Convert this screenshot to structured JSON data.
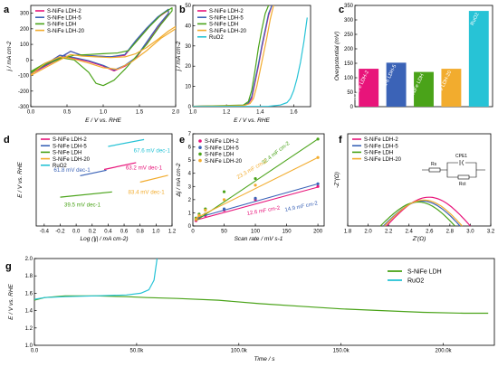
{
  "colors": {
    "nife2": "#e8147a",
    "nife5": "#3b63b7",
    "nife": "#4aa319",
    "nife20": "#f2ac2e",
    "ruo2": "#27c3d6",
    "g_nife": "#4aa319",
    "g_ruo2": "#27c3d6"
  },
  "chart_data": [
    {
      "panel": "a",
      "type": "line",
      "xlabel": "E / V vs. RHE",
      "ylabel": "j / mA cm-2",
      "xlim": [
        0.0,
        2.0
      ],
      "ylim": [
        -300,
        350
      ],
      "xticks": [
        "0.0",
        "0.5",
        "1.0",
        "1.5",
        "2.0"
      ],
      "yticks": [
        "-300",
        "-200",
        "-100",
        "0",
        "100",
        "200",
        "300"
      ],
      "legend": "top-left",
      "series": [
        {
          "name": "S-NiFe LDH-2",
          "color_key": "nife2",
          "x": [
            0.0,
            0.2,
            0.4,
            0.55,
            0.7,
            0.9,
            1.1,
            1.3,
            1.45,
            1.6,
            1.75,
            1.9,
            1.9,
            1.75,
            1.6,
            1.45,
            1.3,
            1.15,
            1.0,
            0.8,
            0.6,
            0.4,
            0.3,
            0.2,
            0.1,
            0.0
          ],
          "y": [
            -90,
            -40,
            10,
            55,
            30,
            25,
            20,
            30,
            120,
            200,
            270,
            320,
            295,
            210,
            110,
            10,
            -40,
            -70,
            -40,
            -10,
            10,
            30,
            0,
            -30,
            -60,
            -85
          ]
        },
        {
          "name": "S-NiFe LDH-5",
          "color_key": "nife5",
          "x": [
            0.0,
            0.2,
            0.4,
            0.55,
            0.7,
            0.9,
            1.1,
            1.3,
            1.45,
            1.6,
            1.75,
            1.9,
            1.9,
            1.75,
            1.6,
            1.45,
            1.3,
            1.15,
            1.0,
            0.8,
            0.6,
            0.4,
            0.3,
            0.2,
            0.1,
            0.0
          ],
          "y": [
            -85,
            -35,
            15,
            55,
            30,
            25,
            20,
            35,
            125,
            205,
            275,
            325,
            300,
            215,
            115,
            15,
            -35,
            -65,
            -35,
            -5,
            15,
            30,
            0,
            -30,
            -55,
            -80
          ]
        },
        {
          "name": "S-NiFe LDH",
          "color_key": "nife",
          "x": [
            0.0,
            0.2,
            0.4,
            0.6,
            0.8,
            1.0,
            1.2,
            1.35,
            1.5,
            1.65,
            1.8,
            1.95,
            1.95,
            1.8,
            1.6,
            1.45,
            1.3,
            1.15,
            1.0,
            0.9,
            0.8,
            0.6,
            0.4,
            0.2,
            0.0
          ],
          "y": [
            -80,
            -30,
            5,
            30,
            35,
            40,
            45,
            60,
            140,
            220,
            290,
            335,
            315,
            230,
            100,
            20,
            -60,
            -130,
            -165,
            -150,
            -80,
            0,
            15,
            -20,
            -75
          ]
        },
        {
          "name": "S-NiFe LDH-20",
          "color_key": "nife20",
          "x": [
            0.0,
            0.2,
            0.4,
            0.55,
            0.7,
            0.9,
            1.1,
            1.3,
            1.45,
            1.6,
            1.75,
            1.9,
            2.0,
            2.0,
            1.8,
            1.6,
            1.4,
            1.2,
            1.0,
            0.8,
            0.6,
            0.4,
            0.2,
            0.0
          ],
          "y": [
            -100,
            -50,
            0,
            35,
            25,
            20,
            15,
            20,
            40,
            80,
            130,
            185,
            215,
            200,
            140,
            60,
            -10,
            -60,
            -50,
            -20,
            5,
            20,
            -20,
            -95
          ]
        }
      ]
    },
    {
      "panel": "b",
      "type": "line",
      "xlabel": "E / V vs. RHE",
      "ylabel": "j / mA cm-2",
      "xlim": [
        1.0,
        1.7
      ],
      "ylim": [
        0,
        50
      ],
      "xticks": [
        "1.0",
        "1.2",
        "1.4",
        "1.6"
      ],
      "yticks": [
        "0",
        "10",
        "20",
        "30",
        "40",
        "50"
      ],
      "legend": "top-left",
      "series": [
        {
          "name": "S-NiFe LDH-2",
          "color_key": "nife2",
          "x": [
            1.0,
            1.3,
            1.33,
            1.35,
            1.37,
            1.39,
            1.41,
            1.43,
            1.45,
            1.47
          ],
          "y": [
            0.2,
            0.5,
            1.5,
            4,
            12,
            20,
            29,
            37,
            45,
            50
          ]
        },
        {
          "name": "S-NiFe LDH-5",
          "color_key": "nife5",
          "x": [
            1.0,
            1.3,
            1.33,
            1.35,
            1.37,
            1.39,
            1.41,
            1.43,
            1.45,
            1.47
          ],
          "y": [
            0.2,
            0.5,
            1.8,
            5,
            13,
            21,
            30,
            38,
            46,
            50
          ]
        },
        {
          "name": "S-NiFe LDH",
          "color_key": "nife",
          "x": [
            1.0,
            1.3,
            1.33,
            1.35,
            1.37,
            1.39,
            1.41,
            1.43,
            1.45
          ],
          "y": [
            0.2,
            0.8,
            2.5,
            8,
            18,
            29,
            38,
            46,
            50
          ]
        },
        {
          "name": "S-NiFe LDH-20",
          "color_key": "nife20",
          "x": [
            1.0,
            1.3,
            1.34,
            1.36,
            1.38,
            1.4,
            1.42,
            1.44,
            1.46,
            1.48
          ],
          "y": [
            0.2,
            0.5,
            1.5,
            4,
            10,
            18,
            26,
            34,
            43,
            50
          ]
        },
        {
          "name": "RuO2",
          "color_key": "ruo2",
          "x": [
            1.0,
            1.45,
            1.52,
            1.56,
            1.58,
            1.6,
            1.62,
            1.64,
            1.66,
            1.68
          ],
          "y": [
            0.1,
            0.2,
            0.8,
            2,
            4,
            8,
            14,
            22,
            32,
            44
          ]
        }
      ]
    },
    {
      "panel": "c",
      "type": "bar",
      "ylabel": "Overpotential (mV)",
      "ylim": [
        0,
        350
      ],
      "yticks": [
        "0",
        "50",
        "100",
        "150",
        "200",
        "250",
        "300",
        "350"
      ],
      "categories": [
        "S-NiFe LDH-2",
        "S-NiFe LDH-5",
        "S-NiFe LDH",
        "S-NiFe LDH-20",
        "RuO2"
      ],
      "values": [
        131,
        152,
        120,
        131,
        331
      ],
      "color_keys": [
        "nife2",
        "nife5",
        "nife",
        "nife20",
        "ruo2"
      ]
    },
    {
      "panel": "d",
      "type": "line",
      "xlabel": "Log (|j| / mA cm-2)",
      "ylabel": "E / V vs. RHE",
      "xlim": [
        -0.5,
        1.2
      ],
      "ylim": [
        1.15,
        1.55
      ],
      "xticks": [
        "-0.4",
        "-0.2",
        "0.0",
        "0.2",
        "0.4",
        "0.6",
        "0.8",
        "1.0",
        "1.2"
      ],
      "legend": "top-left",
      "series": [
        {
          "name": "S-NiFe LDH-2",
          "color_key": "nife2",
          "x": [
            0.35,
            0.75
          ],
          "y": [
            1.395,
            1.425
          ]
        },
        {
          "name": "S-NiFe LDH-5",
          "color_key": "nife5",
          "x": [
            0.05,
            0.38
          ],
          "y": [
            1.368,
            1.392
          ]
        },
        {
          "name": "S-NiFe LDH",
          "color_key": "nife",
          "x": [
            -0.2,
            0.45
          ],
          "y": [
            1.275,
            1.298
          ]
        },
        {
          "name": "S-NiFe LDH-20",
          "color_key": "nife20",
          "x": [
            0.8,
            1.15
          ],
          "y": [
            1.34,
            1.37
          ]
        },
        {
          "name": "RuO2",
          "color_key": "ruo2",
          "x": [
            0.4,
            0.85
          ],
          "y": [
            1.495,
            1.525
          ]
        }
      ],
      "annotations": [
        {
          "text": "67.6 mV dec-1",
          "color_key": "ruo2",
          "x": 0.72,
          "y": 1.47
        },
        {
          "text": "61.8 mV dec-1",
          "color_key": "nife5",
          "x": -0.28,
          "y": 1.385
        },
        {
          "text": "63.2 mV dec-1",
          "color_key": "nife2",
          "x": 0.62,
          "y": 1.395
        },
        {
          "text": "39.5 mV dec-1",
          "color_key": "nife",
          "x": -0.15,
          "y": 1.235
        },
        {
          "text": "83.4 mV dec-1",
          "color_key": "nife20",
          "x": 0.65,
          "y": 1.29
        }
      ]
    },
    {
      "panel": "e",
      "type": "scatter",
      "xlabel": "Scan rate / mV s-1",
      "ylabel": "Δj / mA cm-2",
      "xlim": [
        0,
        210
      ],
      "ylim": [
        0,
        7
      ],
      "xticks": [
        "0",
        "50",
        "100",
        "150",
        "200"
      ],
      "yticks": [
        "0",
        "1",
        "2",
        "3",
        "4",
        "5",
        "6",
        "7"
      ],
      "legend": "top-left",
      "series": [
        {
          "name": "S-NiFe LDH-2",
          "color_key": "nife2",
          "x": [
            5,
            10,
            20,
            50,
            100,
            200
          ],
          "y": [
            0.4,
            0.6,
            0.8,
            1.2,
            2.0,
            3.0
          ],
          "fit_y": [
            0.45,
            2.95
          ]
        },
        {
          "name": "S-NiFe LDH-5",
          "color_key": "nife5",
          "x": [
            5,
            10,
            20,
            50,
            100,
            200
          ],
          "y": [
            0.5,
            0.7,
            0.9,
            1.3,
            2.1,
            3.2
          ],
          "fit_y": [
            0.6,
            3.2
          ]
        },
        {
          "name": "S-NiFe LDH",
          "color_key": "nife",
          "x": [
            5,
            10,
            20,
            50,
            100,
            200
          ],
          "y": [
            0.6,
            0.9,
            1.3,
            2.6,
            3.6,
            6.6
          ],
          "fit_y": [
            0.4,
            6.6
          ]
        },
        {
          "name": "S-NiFe LDH-20",
          "color_key": "nife20",
          "x": [
            5,
            10,
            20,
            50,
            100,
            200
          ],
          "y": [
            0.5,
            0.8,
            1.2,
            2.0,
            3.1,
            5.2
          ],
          "fit_y": [
            0.6,
            5.2
          ]
        }
      ],
      "annotations": [
        {
          "text": "32.4 mF cm-2",
          "color_key": "nife"
        },
        {
          "text": "23.3 mF cm-2",
          "color_key": "nife20"
        },
        {
          "text": "12.6 mF cm-2",
          "color_key": "nife2"
        },
        {
          "text": "14.9 mF cm-2",
          "color_key": "nife5"
        }
      ]
    },
    {
      "panel": "f",
      "type": "line",
      "xlabel": "Z'(Ω)",
      "ylabel": "-Z''(Ω)",
      "xlim": [
        1.8,
        3.2
      ],
      "ylim": [
        0,
        1.0
      ],
      "xticks": [
        "1.8",
        "2.0",
        "2.2",
        "2.4",
        "2.6",
        "2.8",
        "3.0",
        "3.2"
      ],
      "legend": "top-left",
      "circuit_labels": [
        "Rs",
        "CPE1",
        "Rct"
      ],
      "series": [
        {
          "name": "S-NiFe LDH-2",
          "color_key": "nife2",
          "start": 2.18,
          "end": 3.0,
          "peak": 0.3
        },
        {
          "name": "S-NiFe LDH-5",
          "color_key": "nife5",
          "start": 2.15,
          "end": 2.9,
          "peak": 0.26
        },
        {
          "name": "S-NiFe LDH",
          "color_key": "nife",
          "start": 2.12,
          "end": 2.85,
          "peak": 0.25
        },
        {
          "name": "S-NiFe LDH-20",
          "color_key": "nife20",
          "start": 2.16,
          "end": 2.92,
          "peak": 0.27
        }
      ]
    },
    {
      "panel": "g",
      "type": "line",
      "xlabel": "Time / s",
      "ylabel": "E / V vs. RHE",
      "xlim": [
        0,
        225000
      ],
      "ylim": [
        1.0,
        2.0
      ],
      "xticks": [
        "0.0",
        "50.0k",
        "100.0k",
        "150.0k",
        "200.0k"
      ],
      "yticks": [
        "1.0",
        "1.2",
        "1.4",
        "1.6",
        "1.8",
        "2.0"
      ],
      "legend": "right",
      "series": [
        {
          "name": "S-NiFe LDH",
          "color_key": "g_nife",
          "x": [
            0,
            5000,
            15000,
            30000,
            45000,
            55000,
            70000,
            90000,
            110000,
            130000,
            150000,
            170000,
            190000,
            210000,
            222000
          ],
          "y": [
            1.52,
            1.55,
            1.57,
            1.57,
            1.56,
            1.55,
            1.54,
            1.52,
            1.48,
            1.45,
            1.42,
            1.4,
            1.38,
            1.37,
            1.37
          ]
        },
        {
          "name": "RuO2",
          "color_key": "g_ruo2",
          "x": [
            0,
            5000,
            15000,
            30000,
            45000,
            52000,
            56000,
            58500,
            60000
          ],
          "y": [
            1.53,
            1.55,
            1.56,
            1.57,
            1.58,
            1.6,
            1.64,
            1.75,
            2.0
          ]
        }
      ]
    }
  ]
}
